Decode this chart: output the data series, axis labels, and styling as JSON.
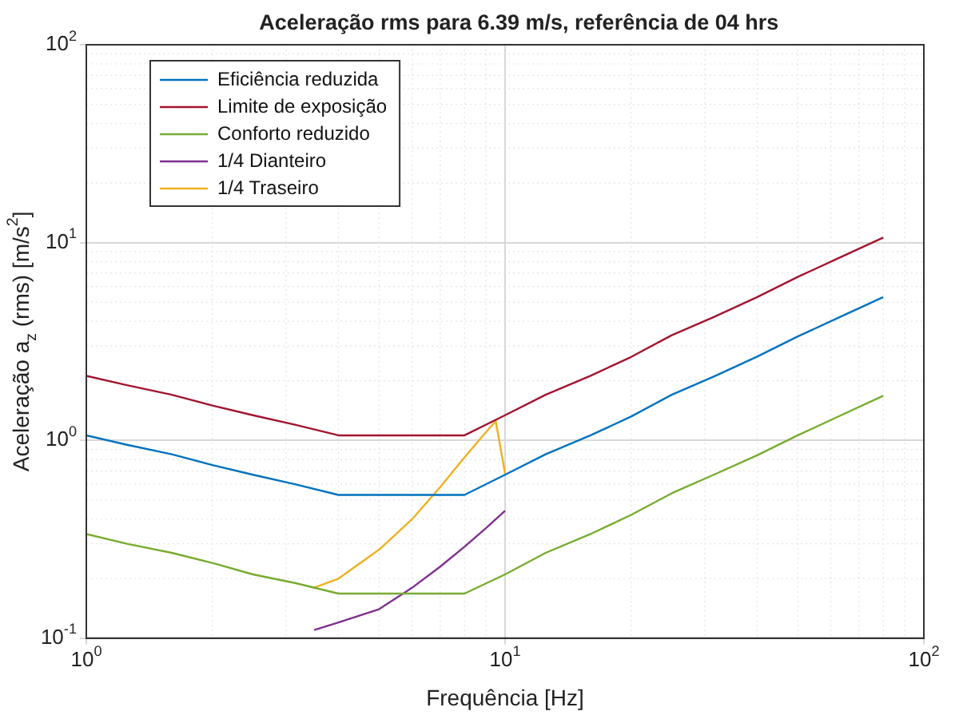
{
  "chart_data": {
    "type": "line",
    "title": "Aceleração rms para 6.39 m/s, referência de 04 hrs",
    "xlabel": "Frequência [Hz]",
    "ylabel": "Aceleração a$_{z}$ (rms) [m/s$^{2}$]",
    "log": "xy",
    "grid": true,
    "legend": "top left",
    "marker": "none",
    "line_style": "solid",
    "xlim": [
      1,
      100
    ],
    "ylim": [
      0.1,
      100
    ],
    "xticks": [
      {
        "value": 1,
        "label": "10$^{0}$"
      },
      {
        "value": 10,
        "label": "10$^{1}$"
      },
      {
        "value": 100,
        "label": "10$^{2}$"
      }
    ],
    "yticks": [
      {
        "value": 0.1,
        "label": "10$^{-1}$"
      },
      {
        "value": 1,
        "label": "10$^{0}$"
      },
      {
        "value": 10,
        "label": "10$^{1}$"
      },
      {
        "value": 100,
        "label": "10$^{2}$"
      }
    ],
    "series": [
      {
        "name": "Eficiência reduzida",
        "color": "#0072bd",
        "x": [
          1,
          1.25,
          1.6,
          2,
          2.5,
          3.15,
          4,
          5,
          6.3,
          8,
          10,
          12.5,
          16,
          20,
          25,
          31.5,
          40,
          50,
          63,
          80
        ],
        "values": [
          1.06,
          0.95,
          0.85,
          0.75,
          0.67,
          0.6,
          0.53,
          0.53,
          0.53,
          0.53,
          0.67,
          0.85,
          1.06,
          1.32,
          1.7,
          2.1,
          2.65,
          3.35,
          4.2,
          5.3
        ]
      },
      {
        "name": "Limite de exposição",
        "color": "#a2142f",
        "x": [
          1,
          1.25,
          1.6,
          2,
          2.5,
          3.15,
          4,
          5,
          6.3,
          8,
          10,
          12.5,
          16,
          20,
          25,
          31.5,
          40,
          50,
          63,
          80
        ],
        "values": [
          2.12,
          1.9,
          1.7,
          1.5,
          1.34,
          1.2,
          1.06,
          1.06,
          1.06,
          1.06,
          1.34,
          1.7,
          2.12,
          2.64,
          3.4,
          4.2,
          5.3,
          6.7,
          8.4,
          10.6
        ]
      },
      {
        "name": "Conforto reduzido",
        "color": "#77ac30",
        "x": [
          1,
          1.25,
          1.6,
          2,
          2.5,
          3.15,
          4,
          5,
          6.3,
          8,
          10,
          12.5,
          16,
          20,
          25,
          31.5,
          40,
          50,
          63,
          80
        ],
        "values": [
          0.336,
          0.3,
          0.27,
          0.24,
          0.21,
          0.19,
          0.168,
          0.168,
          0.168,
          0.168,
          0.21,
          0.27,
          0.336,
          0.42,
          0.54,
          0.67,
          0.84,
          1.06,
          1.33,
          1.68
        ]
      },
      {
        "name": "1/4 Dianteiro",
        "color": "#7e2f8e",
        "x": [
          3.5,
          4,
          5,
          6,
          7,
          8,
          9,
          10
        ],
        "values": [
          0.11,
          0.12,
          0.14,
          0.18,
          0.23,
          0.29,
          0.36,
          0.44
        ]
      },
      {
        "name": "1/4 Traseiro",
        "color": "#edb120",
        "x": [
          3.5,
          4,
          5,
          6,
          7,
          8,
          9,
          9.5,
          10
        ],
        "values": [
          0.18,
          0.2,
          0.28,
          0.4,
          0.58,
          0.82,
          1.1,
          1.25,
          0.68
        ]
      }
    ]
  }
}
